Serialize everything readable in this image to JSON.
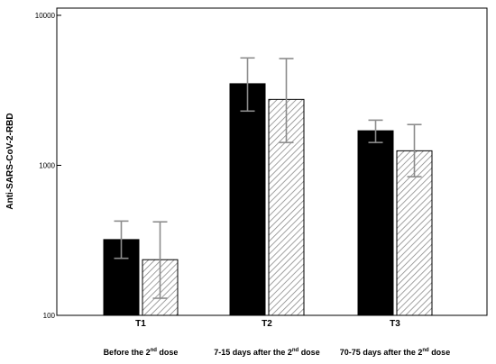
{
  "chart_data": {
    "type": "bar",
    "title": "",
    "ylabel": "Anti-SARS-CoV-2-RBD",
    "xlabel": "",
    "yscale": "log",
    "ylim": [
      100,
      10000
    ],
    "yticks": [
      {
        "value": 100,
        "label": "100"
      },
      {
        "value": 1000,
        "label": "1000"
      },
      {
        "value": 10000,
        "label": "10000"
      }
    ],
    "grid": false,
    "legend": "none",
    "categories": [
      {
        "label": "T1",
        "sub_pre": "Before the 2",
        "sub_sup": "nd",
        "sub_post": " dose"
      },
      {
        "label": "T2",
        "sub_pre": "7-15 days after the 2",
        "sub_sup": "nd",
        "sub_post": " dose"
      },
      {
        "label": "T3",
        "sub_pre": "70-75 days after the 2",
        "sub_sup": "nd",
        "sub_post": " dose"
      }
    ],
    "series": [
      {
        "fill": "solid",
        "color": "#000000",
        "values": [
          320,
          3500,
          1700
        ],
        "err_low": [
          240,
          2300,
          1420
        ],
        "err_high": [
          425,
          5200,
          2000
        ]
      },
      {
        "fill": "hatched",
        "color": "#8a8a8a",
        "values": [
          235,
          2750,
          1250
        ],
        "err_low": [
          130,
          1420,
          840
        ],
        "err_high": [
          420,
          5150,
          1870
        ]
      }
    ]
  }
}
